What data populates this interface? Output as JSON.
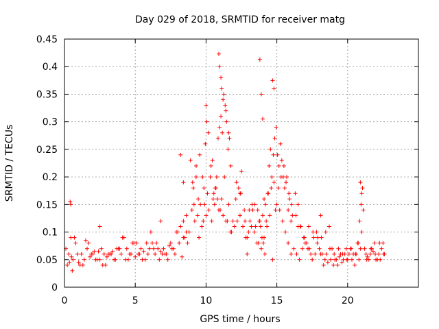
{
  "chart_data": {
    "type": "scatter",
    "title": "Day 029 of 2018, SRMTID for receiver matg",
    "xlabel": "GPS time / hours",
    "ylabel": "SRMTID / TECUs",
    "xlim": [
      0,
      25
    ],
    "ylim": [
      0,
      0.45
    ],
    "xticks": [
      "0",
      "5",
      "10",
      "15",
      "20"
    ],
    "yticks": [
      "0",
      "0.05",
      "0.1",
      "0.15",
      "0.2",
      "0.25",
      "0.3",
      "0.35",
      "0.4",
      "0.45"
    ],
    "grid": true,
    "marker": "+",
    "color": "#ff0000",
    "series": [
      {
        "name": "matg",
        "x": [
          0.1,
          0.3,
          0.45,
          0.6,
          0.8,
          1.0,
          1.2,
          1.4,
          1.6,
          1.8,
          2.0,
          2.2,
          2.4,
          2.6,
          2.8,
          3.0,
          3.2,
          3.4,
          3.6,
          3.8,
          4.0,
          4.2,
          4.4,
          4.6,
          4.8,
          5.0,
          5.2,
          5.4,
          5.6,
          5.8,
          6.0,
          6.2,
          6.4,
          6.6,
          6.8,
          7.0,
          7.2,
          7.4,
          7.6,
          7.8,
          8.0,
          8.2,
          8.4,
          8.6,
          8.8,
          9.0,
          9.2,
          9.4,
          9.6,
          9.8,
          10.0,
          10.2,
          10.4,
          10.6,
          10.8,
          11.0,
          11.2,
          11.4,
          11.6,
          11.8,
          12.0,
          12.2,
          12.4,
          12.6,
          12.8,
          13.0,
          13.2,
          13.4,
          13.6,
          13.8,
          14.0,
          14.2,
          14.4,
          14.6,
          14.8,
          15.0,
          15.2,
          15.4,
          15.6,
          15.8,
          16.0,
          16.2,
          16.4,
          16.6,
          16.8,
          17.0,
          17.2,
          17.4,
          17.6,
          17.8,
          18.0,
          18.2,
          18.4,
          18.6,
          18.8,
          19.0,
          19.2,
          19.4,
          19.6,
          19.8,
          20.0,
          20.2,
          20.4,
          20.6,
          20.8,
          21.0,
          21.2,
          21.4,
          21.6,
          21.8,
          22.0,
          22.2,
          22.4,
          22.6,
          0.2,
          0.5,
          0.7,
          1.1,
          1.5,
          1.9,
          2.3,
          2.7,
          3.1,
          3.5,
          3.9,
          4.3,
          4.7,
          5.1,
          5.5,
          5.9,
          6.3,
          6.7,
          7.1,
          7.5,
          7.9,
          8.3,
          8.5,
          8.7,
          9.1,
          9.3,
          9.5,
          9.7,
          9.9,
          10.1,
          10.3,
          10.5,
          10.7,
          10.9,
          11.1,
          11.3,
          11.5,
          11.7,
          11.9,
          12.1,
          12.3,
          12.5,
          12.7,
          12.9,
          13.1,
          13.3,
          13.5,
          13.7,
          13.9,
          14.1,
          14.3,
          14.5,
          14.7,
          14.9,
          15.1,
          15.3,
          15.5,
          15.7,
          15.9,
          16.1,
          16.3,
          16.5,
          16.7,
          16.9,
          17.1,
          17.3,
          17.5,
          17.7,
          17.9,
          18.1,
          18.3,
          18.5,
          18.7,
          18.9,
          19.1,
          19.3,
          19.5,
          19.7,
          19.9,
          20.1,
          20.3,
          20.5,
          20.7,
          20.9,
          21.1,
          21.3,
          21.5,
          21.7,
          21.9,
          22.1,
          22.3,
          22.5,
          0.35,
          0.55,
          0.9,
          1.3,
          1.7,
          2.1,
          2.5,
          2.9,
          3.3,
          3.7,
          4.1,
          4.5,
          4.9,
          5.3,
          5.7,
          6.1,
          6.5,
          6.9,
          7.3,
          7.7,
          8.1,
          8.4,
          8.6,
          8.9,
          9.05,
          9.15,
          9.45,
          9.55,
          9.75,
          9.85,
          9.95,
          10.05,
          10.15,
          10.35,
          10.45,
          10.55,
          10.65,
          10.75,
          10.85,
          10.95,
          11.05,
          11.15,
          11.25,
          11.35,
          11.45,
          11.55,
          11.65,
          11.75,
          12.15,
          12.45,
          12.75,
          13.05,
          13.25,
          13.45,
          13.65,
          13.75,
          13.85,
          13.95,
          14.05,
          14.15,
          14.25,
          14.35,
          14.45,
          14.55,
          14.65,
          14.75,
          14.85,
          14.95,
          15.05,
          15.15,
          15.25,
          15.35,
          15.45,
          15.55,
          15.65,
          15.85,
          16.05,
          16.35,
          16.65,
          16.95,
          17.25,
          17.55,
          17.85,
          18.15,
          18.45,
          18.75,
          19.05,
          19.35,
          19.65,
          19.95,
          20.25,
          20.55,
          20.75,
          20.85,
          20.95,
          21.05,
          21.35,
          21.65,
          21.95,
          22.25,
          22.55,
          10.9,
          10.95,
          11.05,
          11.1,
          11.2,
          13.8,
          13.9,
          14.0,
          14.7,
          14.8,
          10.0,
          11.4,
          11.6,
          9.3,
          8.2,
          8.4,
          15.8,
          16.0,
          18.1,
          20.9,
          21.0,
          0.4,
          0.45,
          12.4,
          12.9,
          13.3,
          14.1,
          16.5,
          6.8,
          2.5
        ],
        "y": [
          0.07,
          0.06,
          0.09,
          0.05,
          0.08,
          0.045,
          0.06,
          0.05,
          0.07,
          0.055,
          0.06,
          0.05,
          0.065,
          0.07,
          0.06,
          0.055,
          0.06,
          0.065,
          0.05,
          0.07,
          0.06,
          0.09,
          0.07,
          0.06,
          0.08,
          0.055,
          0.06,
          0.07,
          0.065,
          0.08,
          0.07,
          0.08,
          0.06,
          0.07,
          0.065,
          0.07,
          0.06,
          0.075,
          0.07,
          0.06,
          0.1,
          0.11,
          0.12,
          0.13,
          0.1,
          0.14,
          0.12,
          0.13,
          0.15,
          0.12,
          0.13,
          0.14,
          0.12,
          0.15,
          0.16,
          0.14,
          0.13,
          0.12,
          0.15,
          0.1,
          0.11,
          0.12,
          0.13,
          0.11,
          0.09,
          0.1,
          0.11,
          0.1,
          0.08,
          0.12,
          0.13,
          0.15,
          0.17,
          0.18,
          0.19,
          0.15,
          0.14,
          0.12,
          0.1,
          0.08,
          0.06,
          0.07,
          0.06,
          0.05,
          0.07,
          0.08,
          0.07,
          0.06,
          0.09,
          0.1,
          0.07,
          0.06,
          0.05,
          0.045,
          0.05,
          0.04,
          0.05,
          0.055,
          0.045,
          0.06,
          0.05,
          0.07,
          0.06,
          0.06,
          0.05,
          0.1,
          0.07,
          0.055,
          0.06,
          0.065,
          0.05,
          0.06,
          0.07,
          0.06,
          0.04,
          0.055,
          0.09,
          0.04,
          0.085,
          0.06,
          0.05,
          0.04,
          0.06,
          0.05,
          0.07,
          0.05,
          0.06,
          0.08,
          0.05,
          0.06,
          0.07,
          0.05,
          0.06,
          0.08,
          0.1,
          0.055,
          0.09,
          0.08,
          0.18,
          0.22,
          0.09,
          0.11,
          0.15,
          0.17,
          0.2,
          0.16,
          0.18,
          0.14,
          0.16,
          0.2,
          0.12,
          0.1,
          0.12,
          0.16,
          0.18,
          0.21,
          0.14,
          0.09,
          0.12,
          0.14,
          0.11,
          0.08,
          0.07,
          0.09,
          0.11,
          0.13,
          0.05,
          0.14,
          0.18,
          0.2,
          0.22,
          0.2,
          0.16,
          0.13,
          0.17,
          0.15,
          0.11,
          0.09,
          0.08,
          0.07,
          0.05,
          0.06,
          0.09,
          0.06,
          0.04,
          0.06,
          0.11,
          0.07,
          0.05,
          0.04,
          0.06,
          0.05,
          0.07,
          0.06,
          0.05,
          0.04,
          0.08,
          0.07,
          0.14,
          0.06,
          0.05,
          0.07,
          0.08,
          0.05,
          0.05,
          0.08,
          0.045,
          0.03,
          0.06,
          0.04,
          0.08,
          0.065,
          0.05,
          0.04,
          0.06,
          0.07,
          0.09,
          0.05,
          0.08,
          0.06,
          0.05,
          0.1,
          0.08,
          0.06,
          0.05,
          0.07,
          0.08,
          0.09,
          0.1,
          0.23,
          0.19,
          0.15,
          0.16,
          0.24,
          0.2,
          0.18,
          0.26,
          0.3,
          0.28,
          0.22,
          0.23,
          0.17,
          0.18,
          0.2,
          0.27,
          0.29,
          0.31,
          0.28,
          0.35,
          0.33,
          0.3,
          0.25,
          0.27,
          0.22,
          0.19,
          0.17,
          0.12,
          0.14,
          0.15,
          0.15,
          0.14,
          0.12,
          0.11,
          0.09,
          0.08,
          0.06,
          0.12,
          0.17,
          0.22,
          0.25,
          0.2,
          0.24,
          0.27,
          0.29,
          0.24,
          0.22,
          0.26,
          0.23,
          0.2,
          0.18,
          0.19,
          0.17,
          0.15,
          0.13,
          0.11,
          0.09,
          0.11,
          0.1,
          0.08,
          0.09,
          0.1,
          0.07,
          0.06,
          0.07,
          0.06,
          0.05,
          0.07,
          0.06,
          0.08,
          0.12,
          0.15,
          0.18,
          0.05,
          0.07,
          0.06,
          0.08,
          0.06,
          0.423,
          0.4,
          0.38,
          0.36,
          0.34,
          0.413,
          0.35,
          0.305,
          0.375,
          0.36,
          0.33,
          0.32,
          0.28,
          0.2,
          0.24,
          0.19,
          0.14,
          0.12,
          0.13,
          0.19,
          0.17,
          0.155,
          0.15,
          0.17,
          0.06,
          0.14,
          0.16,
          0.11,
          0.12,
          0.11
        ]
      }
    ]
  }
}
